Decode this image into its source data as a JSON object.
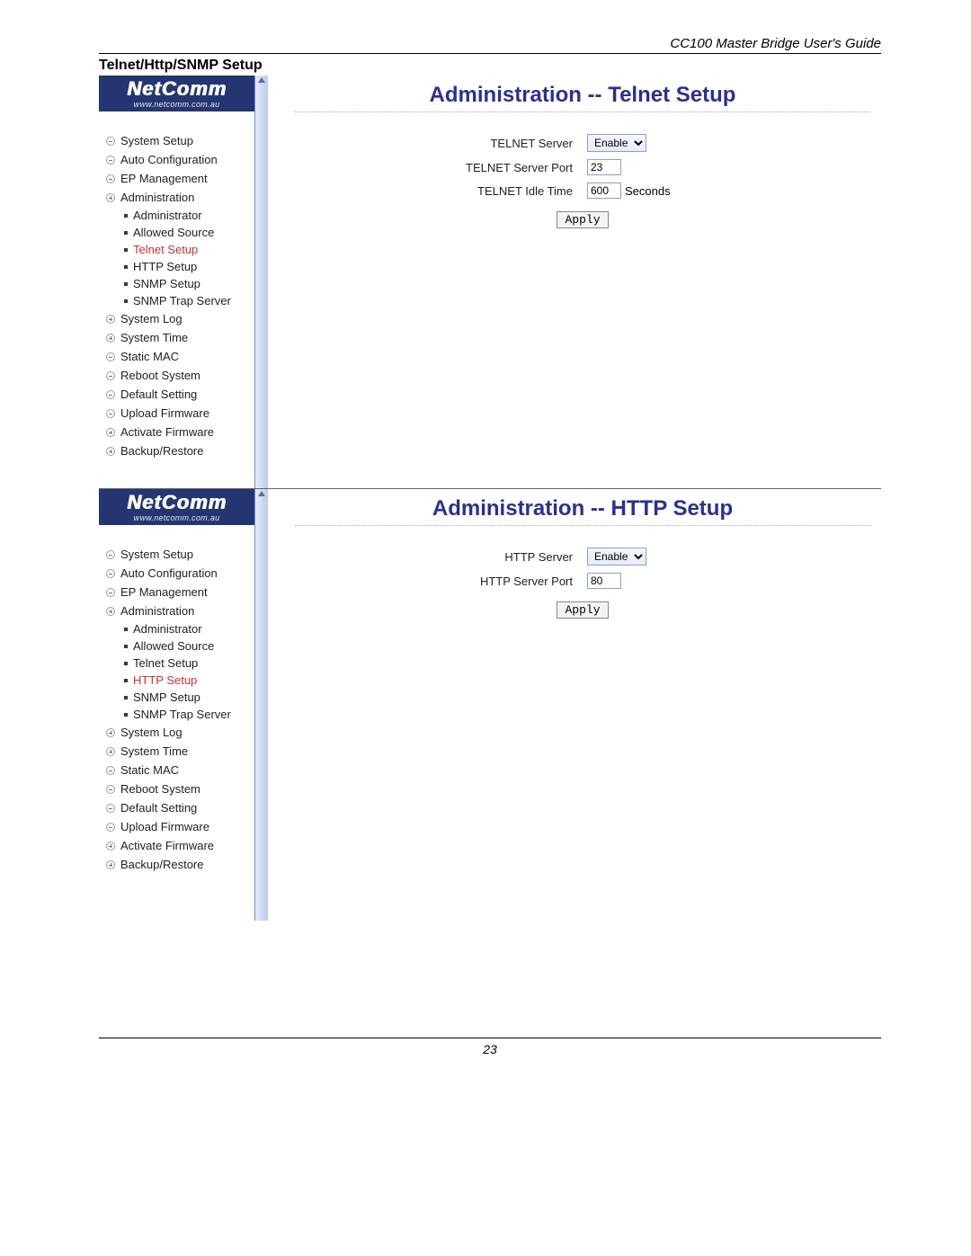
{
  "doc": {
    "header": "CC100 Master Bridge User's Guide",
    "section_label": "Telnet/Http/SNMP Setup",
    "page_number": "23"
  },
  "logo": {
    "brand": "NetComm",
    "url": "www.netcomm.com.au"
  },
  "nav": {
    "system_setup": "System Setup",
    "auto_config": "Auto Configuration",
    "ep_mgmt": "EP Management",
    "administration": "Administration",
    "sub": {
      "administrator": "Administrator",
      "allowed_source": "Allowed Source",
      "telnet_setup": "Telnet Setup",
      "http_setup": "HTTP Setup",
      "snmp_setup": "SNMP Setup",
      "snmp_trap": "SNMP Trap Server"
    },
    "system_log": "System Log",
    "system_time": "System Time",
    "static_mac": "Static MAC",
    "reboot": "Reboot System",
    "default_setting": "Default Setting",
    "upload_fw": "Upload Firmware",
    "activate_fw": "Activate Firmware",
    "backup": "Backup/Restore"
  },
  "panel1": {
    "title": "Administration -- Telnet Setup",
    "labels": {
      "server": "TELNET Server",
      "port": "TELNET Server Port",
      "idle": "TELNET Idle Time"
    },
    "values": {
      "server": "Enable",
      "port": "23",
      "idle": "600",
      "idle_suffix": "Seconds"
    },
    "apply": "Apply"
  },
  "panel2": {
    "title": "Administration -- HTTP Setup",
    "labels": {
      "server": "HTTP Server",
      "port": "HTTP Server Port"
    },
    "values": {
      "server": "Enable",
      "port": "80"
    },
    "apply": "Apply"
  }
}
